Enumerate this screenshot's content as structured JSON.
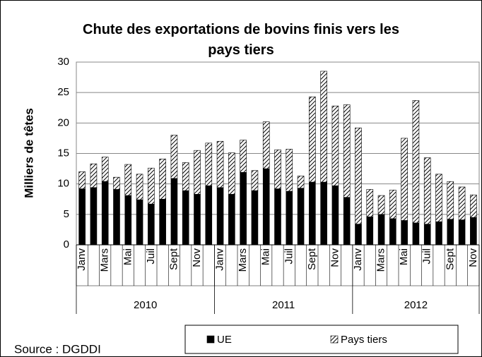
{
  "chart_data": {
    "type": "stacked_bar",
    "title": "Chute des exportations de bovins finis vers les pays tiers",
    "y_label": "Milliers de têtes",
    "source": "Source : DGDDI",
    "categories": [
      "Janv",
      null,
      "Mars",
      null,
      "Mai",
      null,
      "Juil",
      null,
      "Sept",
      null,
      "Nov",
      null,
      "Janv",
      null,
      "Mars",
      null,
      "Mai",
      null,
      "Juil",
      null,
      "Sept",
      null,
      "Nov",
      null,
      "Janv",
      null,
      "Mars",
      null,
      "Mai",
      null,
      "Juil",
      null,
      "Sept",
      null,
      "Nov"
    ],
    "years": [
      "2010",
      "2011",
      "2012"
    ],
    "series": [
      {
        "name": "UE",
        "color": "#000000",
        "pattern": "solid",
        "values": [
          9.2,
          9.4,
          10.4,
          9.1,
          8.1,
          7.4,
          6.7,
          7.5,
          10.9,
          8.9,
          8.3,
          9.7,
          9.4,
          8.3,
          11.9,
          8.9,
          12.5,
          9.2,
          8.8,
          9.3,
          10.3,
          10.3,
          9.7,
          7.8,
          3.4,
          4.6,
          5.0,
          4.3,
          4.0,
          3.6,
          3.4,
          3.8,
          4.2,
          4.1,
          4.5
        ]
      },
      {
        "name": "Pays tiers",
        "color": "#000000",
        "pattern": "hatch",
        "values": [
          2.8,
          3.9,
          4.0,
          2.0,
          5.1,
          4.2,
          5.9,
          6.6,
          7.1,
          4.6,
          7.2,
          7.0,
          7.6,
          6.8,
          5.3,
          3.3,
          7.7,
          6.4,
          6.9,
          2.0,
          14.0,
          18.2,
          13.1,
          15.2,
          15.8,
          4.5,
          3.1,
          4.7,
          13.5,
          20.1,
          10.9,
          7.8,
          6.2,
          5.4,
          3.7
        ]
      }
    ],
    "ylim": [
      0,
      30
    ],
    "yticks": [
      0,
      5,
      10,
      15,
      20,
      25,
      30
    ],
    "grid": true,
    "legend": "bottom"
  }
}
